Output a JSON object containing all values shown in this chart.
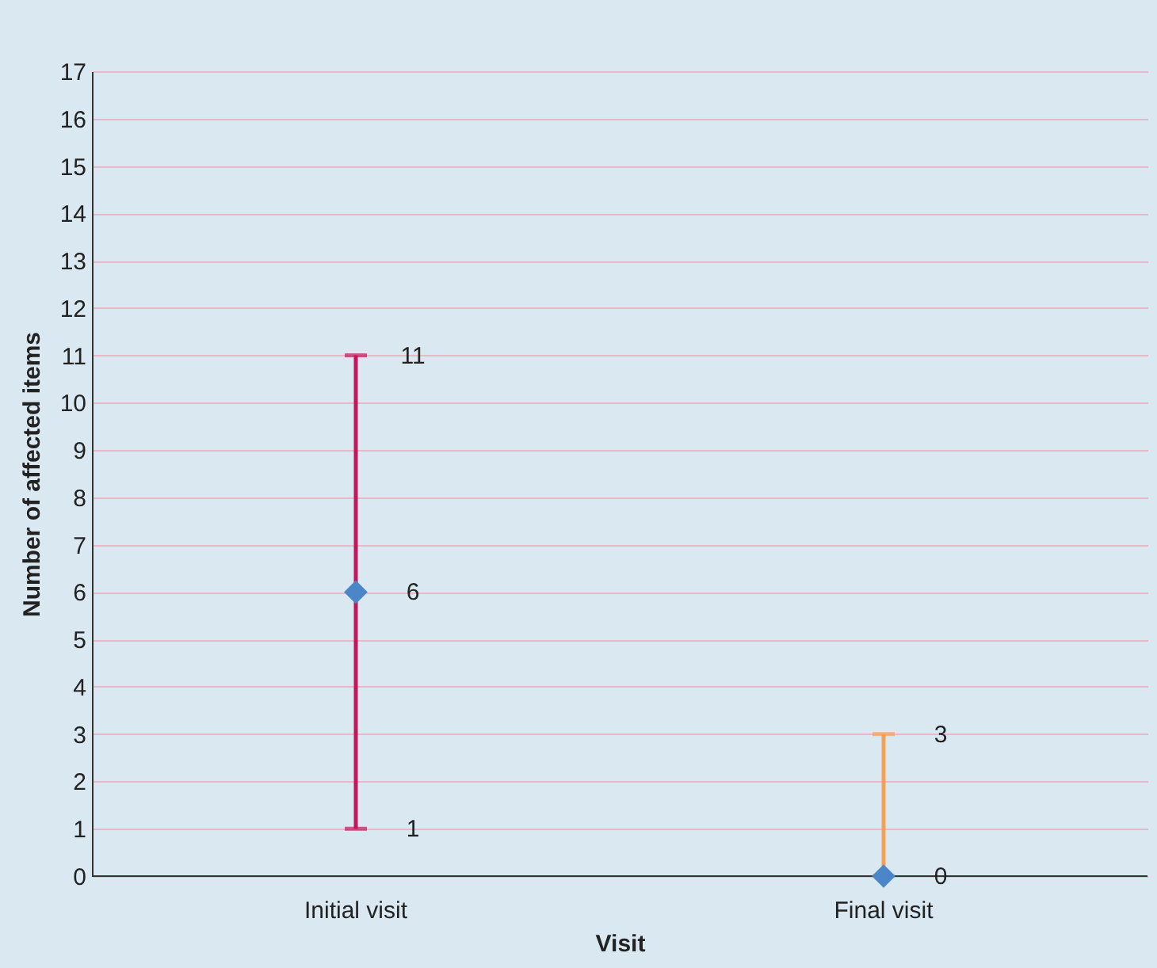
{
  "chart_data": {
    "type": "scatter",
    "xlabel": "Visit",
    "ylabel": "Number of affected items",
    "categories": [
      "Initial visit",
      "Final visit"
    ],
    "series": [
      {
        "color": "#4a86c8",
        "values": [
          6,
          0
        ],
        "errors": [
          [
            1,
            11
          ],
          [
            0,
            3
          ]
        ]
      }
    ],
    "data_labels": true,
    "annotations": [
      "11",
      "1",
      "3"
    ],
    "ylim": [
      0,
      17
    ],
    "yticks": [
      0,
      1,
      2,
      3,
      4,
      5,
      6,
      7,
      8,
      9,
      10,
      11,
      12,
      13,
      14,
      15,
      16,
      17
    ],
    "grid": "y",
    "marker": "diamond"
  }
}
